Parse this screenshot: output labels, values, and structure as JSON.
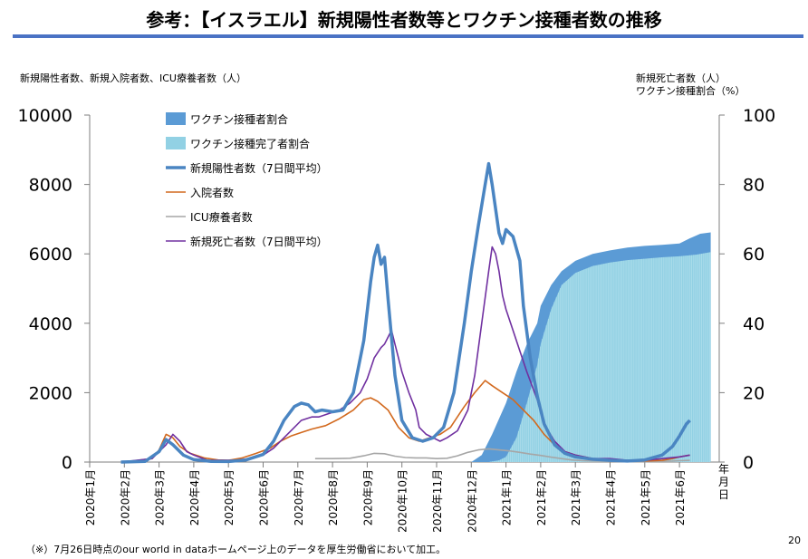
{
  "page": {
    "title": "参考：【イスラエル】新規陽性者数等とワクチン接種者数の推移",
    "footnote": "（※）7月26日時点のour world in dataホームページ上のデータを厚生労働省において加工。",
    "page_number": "20"
  },
  "chart_data": {
    "type": "line",
    "left_axis_caption": "新規陽性者数、新規入院者数、ICU療養者数（人）",
    "right_axis_caption": [
      "新規死亡者数（人）",
      "ワクチン接種割合（%）"
    ],
    "x_axis_end_label": "年月日",
    "x_categories": [
      "2020年1月",
      "2020年2月",
      "2020年3月",
      "2020年4月",
      "2020年5月",
      "2020年6月",
      "2020年7月",
      "2020年8月",
      "2020年9月",
      "2020年10月",
      "2020年11月",
      "2020年12月",
      "2021年1月",
      "2021年2月",
      "2021年3月",
      "2021年4月",
      "2021年5月",
      "2021年6月"
    ],
    "left_axis": {
      "ticks": [
        "0",
        "2000",
        "4000",
        "6000",
        "8000",
        "10000"
      ],
      "range": [
        0,
        10000
      ]
    },
    "right_axis": {
      "ticks": [
        "0",
        "20",
        "40",
        "60",
        "80",
        "100"
      ],
      "range": [
        0,
        100
      ]
    },
    "legend_placement": "top-left",
    "series": [
      {
        "name": "ワクチン接種者割合",
        "axis": "right",
        "kind": "area",
        "color": "#5b9bd5",
        "points": [
          [
            11.0,
            0
          ],
          [
            11.3,
            2
          ],
          [
            11.6,
            8
          ],
          [
            12.0,
            17
          ],
          [
            12.3,
            26
          ],
          [
            12.6,
            34
          ],
          [
            12.9,
            40
          ],
          [
            13.0,
            45
          ],
          [
            13.3,
            51
          ],
          [
            13.6,
            55
          ],
          [
            14.0,
            58
          ],
          [
            14.5,
            60
          ],
          [
            15.0,
            61
          ],
          [
            15.5,
            61.8
          ],
          [
            16.0,
            62.3
          ],
          [
            16.5,
            62.6
          ],
          [
            17.0,
            63
          ],
          [
            17.3,
            64.5
          ],
          [
            17.6,
            65.8
          ],
          [
            17.9,
            66.2
          ]
        ]
      },
      {
        "name": "ワクチン接種完了者割合",
        "axis": "right",
        "kind": "area",
        "color": "#92d1e4",
        "points": [
          [
            11.5,
            0
          ],
          [
            11.8,
            0.5
          ],
          [
            12.0,
            1.5
          ],
          [
            12.3,
            7
          ],
          [
            12.6,
            17
          ],
          [
            12.9,
            28
          ],
          [
            13.0,
            34
          ],
          [
            13.3,
            44
          ],
          [
            13.6,
            51
          ],
          [
            14.0,
            54.5
          ],
          [
            14.5,
            56.5
          ],
          [
            15.0,
            57.5
          ],
          [
            15.5,
            58.2
          ],
          [
            16.0,
            58.6
          ],
          [
            16.5,
            59
          ],
          [
            17.0,
            59.3
          ],
          [
            17.5,
            59.8
          ],
          [
            17.9,
            60.5
          ]
        ]
      },
      {
        "name": "新規陽性者数（7日間平均）",
        "axis": "left",
        "kind": "line",
        "color": "#4a85c2",
        "points": [
          [
            0.9,
            0
          ],
          [
            1.6,
            20
          ],
          [
            2.0,
            300
          ],
          [
            2.2,
            650
          ],
          [
            2.4,
            500
          ],
          [
            2.7,
            200
          ],
          [
            3.0,
            70
          ],
          [
            3.5,
            20
          ],
          [
            4.0,
            15
          ],
          [
            4.5,
            60
          ],
          [
            5.0,
            220
          ],
          [
            5.3,
            600
          ],
          [
            5.6,
            1200
          ],
          [
            5.9,
            1600
          ],
          [
            6.1,
            1700
          ],
          [
            6.3,
            1650
          ],
          [
            6.5,
            1450
          ],
          [
            6.7,
            1500
          ],
          [
            7.0,
            1450
          ],
          [
            7.3,
            1500
          ],
          [
            7.6,
            2000
          ],
          [
            7.9,
            3500
          ],
          [
            8.1,
            5200
          ],
          [
            8.2,
            5900
          ],
          [
            8.3,
            6250
          ],
          [
            8.4,
            5700
          ],
          [
            8.5,
            5900
          ],
          [
            8.6,
            4700
          ],
          [
            8.8,
            2500
          ],
          [
            9.0,
            1200
          ],
          [
            9.3,
            700
          ],
          [
            9.6,
            600
          ],
          [
            9.9,
            700
          ],
          [
            10.2,
            1000
          ],
          [
            10.5,
            2000
          ],
          [
            10.8,
            4000
          ],
          [
            11.0,
            5500
          ],
          [
            11.2,
            6800
          ],
          [
            11.4,
            8000
          ],
          [
            11.5,
            8600
          ],
          [
            11.6,
            8000
          ],
          [
            11.8,
            6600
          ],
          [
            11.9,
            6300
          ],
          [
            12.0,
            6700
          ],
          [
            12.2,
            6500
          ],
          [
            12.4,
            5800
          ],
          [
            12.5,
            4500
          ],
          [
            12.7,
            3000
          ],
          [
            12.9,
            1900
          ],
          [
            13.1,
            1100
          ],
          [
            13.4,
            500
          ],
          [
            13.7,
            250
          ],
          [
            14.0,
            150
          ],
          [
            14.5,
            80
          ],
          [
            15.0,
            50
          ],
          [
            15.5,
            30
          ],
          [
            16.0,
            60
          ],
          [
            16.5,
            200
          ],
          [
            16.8,
            450
          ],
          [
            17.0,
            750
          ],
          [
            17.2,
            1100
          ],
          [
            17.3,
            1200
          ]
        ]
      },
      {
        "name": "入院者数",
        "axis": "left",
        "kind": "line",
        "color": "#d2691e",
        "points": [
          [
            1.0,
            0
          ],
          [
            1.8,
            100
          ],
          [
            2.0,
            350
          ],
          [
            2.2,
            800
          ],
          [
            2.4,
            700
          ],
          [
            2.6,
            450
          ],
          [
            2.9,
            250
          ],
          [
            3.3,
            120
          ],
          [
            3.7,
            60
          ],
          [
            4.0,
            50
          ],
          [
            4.4,
            120
          ],
          [
            4.8,
            250
          ],
          [
            5.2,
            400
          ],
          [
            5.5,
            600
          ],
          [
            5.8,
            750
          ],
          [
            6.1,
            850
          ],
          [
            6.4,
            950
          ],
          [
            6.8,
            1050
          ],
          [
            7.2,
            1250
          ],
          [
            7.6,
            1500
          ],
          [
            7.9,
            1800
          ],
          [
            8.1,
            1850
          ],
          [
            8.3,
            1750
          ],
          [
            8.6,
            1500
          ],
          [
            8.9,
            1000
          ],
          [
            9.2,
            700
          ],
          [
            9.5,
            600
          ],
          [
            9.8,
            700
          ],
          [
            10.1,
            800
          ],
          [
            10.4,
            1000
          ],
          [
            10.8,
            1600
          ],
          [
            11.1,
            2000
          ],
          [
            11.4,
            2350
          ],
          [
            11.6,
            2200
          ],
          [
            11.9,
            2000
          ],
          [
            12.2,
            1800
          ],
          [
            12.5,
            1500
          ],
          [
            12.8,
            1200
          ],
          [
            13.1,
            800
          ],
          [
            13.4,
            500
          ],
          [
            13.7,
            300
          ],
          [
            14.0,
            200
          ],
          [
            14.5,
            100
          ],
          [
            15.0,
            60
          ],
          [
            15.5,
            40
          ],
          [
            16.0,
            30
          ],
          [
            16.5,
            50
          ],
          [
            16.8,
            100
          ],
          [
            17.0,
            150
          ],
          [
            17.3,
            200
          ]
        ]
      },
      {
        "name": "ICU療養者数",
        "axis": "left",
        "kind": "line",
        "color": "#a6a6a6",
        "points": [
          [
            6.5,
            100
          ],
          [
            7.0,
            100
          ],
          [
            7.5,
            110
          ],
          [
            7.9,
            180
          ],
          [
            8.2,
            250
          ],
          [
            8.5,
            240
          ],
          [
            8.8,
            170
          ],
          [
            9.1,
            130
          ],
          [
            9.4,
            120
          ],
          [
            9.7,
            120
          ],
          [
            10.0,
            100
          ],
          [
            10.3,
            110
          ],
          [
            10.6,
            180
          ],
          [
            10.9,
            280
          ],
          [
            11.2,
            350
          ],
          [
            11.5,
            380
          ],
          [
            11.8,
            350
          ],
          [
            12.1,
            320
          ],
          [
            12.4,
            280
          ],
          [
            12.7,
            230
          ],
          [
            13.0,
            190
          ],
          [
            13.3,
            140
          ],
          [
            13.6,
            100
          ],
          [
            13.9,
            60
          ],
          [
            14.2,
            40
          ],
          [
            14.6,
            25
          ],
          [
            15.0,
            20
          ],
          [
            15.5,
            15
          ],
          [
            16.0,
            15
          ],
          [
            16.5,
            20
          ],
          [
            16.8,
            30
          ],
          [
            17.0,
            40
          ],
          [
            17.3,
            50
          ]
        ]
      },
      {
        "name": "新規死亡者数（7日間平均）",
        "axis": "right",
        "kind": "line",
        "color": "#7030a0",
        "points": [
          [
            0.9,
            0
          ],
          [
            1.8,
            1
          ],
          [
            2.0,
            3
          ],
          [
            2.2,
            5
          ],
          [
            2.4,
            8
          ],
          [
            2.6,
            6
          ],
          [
            2.8,
            3
          ],
          [
            3.0,
            2
          ],
          [
            3.4,
            0.5
          ],
          [
            3.8,
            0.5
          ],
          [
            4.2,
            0.5
          ],
          [
            4.6,
            1
          ],
          [
            5.0,
            2
          ],
          [
            5.3,
            4
          ],
          [
            5.6,
            7
          ],
          [
            5.9,
            10
          ],
          [
            6.1,
            12
          ],
          [
            6.4,
            13
          ],
          [
            6.6,
            13
          ],
          [
            6.9,
            14
          ],
          [
            7.2,
            15
          ],
          [
            7.5,
            17
          ],
          [
            7.8,
            20
          ],
          [
            8.0,
            24
          ],
          [
            8.2,
            30
          ],
          [
            8.4,
            33
          ],
          [
            8.5,
            34
          ],
          [
            8.6,
            36
          ],
          [
            8.7,
            38
          ],
          [
            8.8,
            34
          ],
          [
            8.9,
            30
          ],
          [
            9.0,
            26
          ],
          [
            9.2,
            20
          ],
          [
            9.4,
            15
          ],
          [
            9.5,
            10
          ],
          [
            9.7,
            8
          ],
          [
            9.9,
            7
          ],
          [
            10.1,
            6
          ],
          [
            10.3,
            7
          ],
          [
            10.6,
            9
          ],
          [
            10.9,
            15
          ],
          [
            11.1,
            25
          ],
          [
            11.3,
            40
          ],
          [
            11.5,
            55
          ],
          [
            11.6,
            62
          ],
          [
            11.7,
            60
          ],
          [
            11.8,
            55
          ],
          [
            11.9,
            48
          ],
          [
            12.0,
            44
          ],
          [
            12.2,
            38
          ],
          [
            12.4,
            32
          ],
          [
            12.6,
            26
          ],
          [
            12.9,
            18
          ],
          [
            13.1,
            11
          ],
          [
            13.4,
            6
          ],
          [
            13.7,
            3
          ],
          [
            14.0,
            2
          ],
          [
            14.5,
            1
          ],
          [
            15.0,
            1
          ],
          [
            15.5,
            0.5
          ],
          [
            16.0,
            0.5
          ],
          [
            16.5,
            1
          ],
          [
            17.0,
            1.5
          ],
          [
            17.3,
            2
          ]
        ]
      }
    ]
  }
}
